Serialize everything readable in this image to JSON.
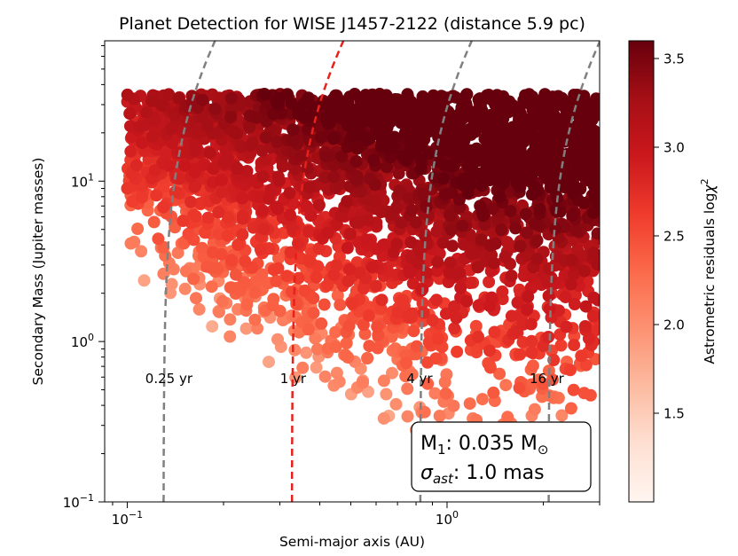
{
  "chart_data": {
    "type": "scatter",
    "title": "Planet Detection for WISE J1457-2122 (distance 5.9 pc)",
    "xlabel": "Semi-major axis (AU)",
    "ylabel": "Secondary Mass (Jupiter masses)",
    "xscale": "log",
    "yscale": "log",
    "xlim": [
      0.085,
      3.0
    ],
    "ylim": [
      0.1,
      75
    ],
    "xticks": [
      {
        "value": 0.1,
        "base": "10",
        "exp": "−1"
      },
      {
        "value": 1.0,
        "base": "10",
        "exp": "0"
      }
    ],
    "yticks": [
      {
        "value": 0.1,
        "base": "10",
        "exp": "−1"
      },
      {
        "value": 1.0,
        "base": "10",
        "exp": "0"
      },
      {
        "value": 10.0,
        "base": "10",
        "exp": "1"
      }
    ],
    "period_curves": [
      {
        "label": "0.25 yr",
        "period_yr": 0.25,
        "color": "#808080",
        "label_x": 0.135
      },
      {
        "label": "1 yr",
        "period_yr": 1,
        "color": "#e8211a",
        "label_x": 0.33
      },
      {
        "label": "4 yr",
        "period_yr": 4,
        "color": "#808080",
        "label_x": 0.82
      },
      {
        "label": "16 yr",
        "period_yr": 16,
        "color": "#808080",
        "label_x": 2.05
      }
    ],
    "period_label_y": 0.55,
    "primary_mass_msun": 0.035,
    "scatter": {
      "color_quantity": "log chi-squared",
      "mass_range": [
        0.2,
        35
      ],
      "sma_range": [
        0.1,
        3.0
      ],
      "marker_color": "Reds colormap"
    },
    "colorbar": {
      "label_main": "Astrometric residuals log",
      "label_sym": "χ",
      "label_sup": "2",
      "range": [
        1.0,
        3.6
      ],
      "ticks": [
        "1.5",
        "2.0",
        "2.5",
        "3.0",
        "3.5"
      ],
      "tick_values": [
        1.5,
        2.0,
        2.5,
        3.0,
        3.5
      ],
      "cmap": [
        "#fff5f0",
        "#fee0d2",
        "#fcbba1",
        "#fc9272",
        "#fb6a4a",
        "#ef3b2c",
        "#cb181d",
        "#a50f15",
        "#67000d"
      ]
    },
    "info_box": {
      "line1_prefix": "M",
      "line1_sub": "1",
      "line1_value": ": 0.035 M",
      "line1_sun": "⊙",
      "line2_sym": "σ",
      "line2_sub": "ast",
      "line2_value": ": 1.0 mas"
    }
  }
}
